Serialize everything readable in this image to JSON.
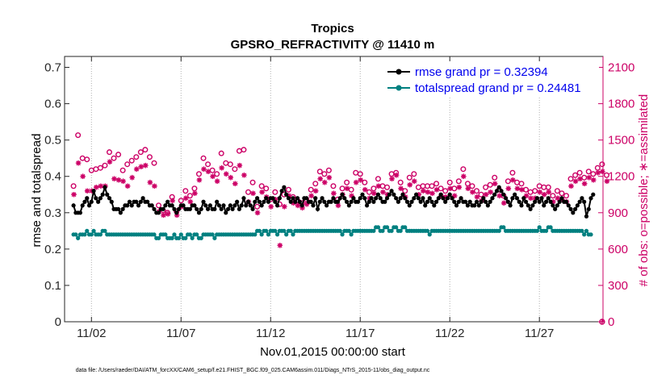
{
  "chart_data": {
    "type": "line",
    "title": "Tropics",
    "subtitle": "GPSRO_REFRACTIVITY @ 11410 m",
    "xlabel": "Nov.01,2015 00:00:00 start",
    "ylabel": "rmse and totalspread",
    "ylabel_right": "# of obs: o=possible; ∗=assimilated",
    "footer": "data file: /Users/raeder/DAI/ATM_forcXX/CAM6_setup/f.e21.FHIST_BGC.f09_025.CAM6assim.011/Diags_NTrS_2015-11/obs_diag_output.nc",
    "x_range": [
      0.5,
      30.55
    ],
    "ylim": [
      0,
      0.73
    ],
    "ylim_right": [
      0,
      2190
    ],
    "xticks": [
      {
        "value": 2,
        "label": "11/02"
      },
      {
        "value": 7,
        "label": "11/07"
      },
      {
        "value": 12,
        "label": "11/12"
      },
      {
        "value": 17,
        "label": "11/17"
      },
      {
        "value": 22,
        "label": "11/22"
      },
      {
        "value": 27,
        "label": "11/27"
      }
    ],
    "yticks": [
      {
        "value": 0,
        "label": "0"
      },
      {
        "value": 0.1,
        "label": "0.1"
      },
      {
        "value": 0.2,
        "label": "0.2"
      },
      {
        "value": 0.3,
        "label": "0.3"
      },
      {
        "value": 0.4,
        "label": "0.4"
      },
      {
        "value": 0.5,
        "label": "0.5"
      },
      {
        "value": 0.6,
        "label": "0.6"
      },
      {
        "value": 0.7,
        "label": "0.7"
      }
    ],
    "yticks_right": [
      {
        "value": 0,
        "label": "0"
      },
      {
        "value": 300,
        "label": "300"
      },
      {
        "value": 600,
        "label": "600"
      },
      {
        "value": 900,
        "label": "900"
      },
      {
        "value": 1200,
        "label": "1200"
      },
      {
        "value": 1500,
        "label": "1500"
      },
      {
        "value": 1800,
        "label": "1800"
      },
      {
        "value": 2100,
        "label": "2100"
      }
    ],
    "series": [
      {
        "name": "rmse grand pr = 0.32394",
        "color": "#000000",
        "x_start": 1,
        "x_step": 0.125,
        "values": [
          0.32,
          0.3,
          0.3,
          0.3,
          0.32,
          0.33,
          0.34,
          0.32,
          0.33,
          0.36,
          0.34,
          0.33,
          0.34,
          0.35,
          0.37,
          0.35,
          0.34,
          0.33,
          0.31,
          0.31,
          0.31,
          0.3,
          0.31,
          0.32,
          0.32,
          0.33,
          0.32,
          0.33,
          0.33,
          0.32,
          0.33,
          0.34,
          0.33,
          0.33,
          0.32,
          0.32,
          0.31,
          0.3,
          0.3,
          0.31,
          0.31,
          0.32,
          0.33,
          0.32,
          0.32,
          0.31,
          0.3,
          0.31,
          0.32,
          0.32,
          0.31,
          0.31,
          0.31,
          0.32,
          0.32,
          0.31,
          0.3,
          0.31,
          0.33,
          0.32,
          0.31,
          0.32,
          0.31,
          0.31,
          0.33,
          0.32,
          0.31,
          0.32,
          0.3,
          0.31,
          0.32,
          0.31,
          0.32,
          0.33,
          0.31,
          0.32,
          0.34,
          0.32,
          0.33,
          0.32,
          0.31,
          0.33,
          0.34,
          0.33,
          0.32,
          0.33,
          0.34,
          0.33,
          0.34,
          0.34,
          0.33,
          0.32,
          0.34,
          0.36,
          0.37,
          0.35,
          0.34,
          0.33,
          0.34,
          0.33,
          0.34,
          0.33,
          0.32,
          0.34,
          0.34,
          0.33,
          0.33,
          0.32,
          0.34,
          0.31,
          0.33,
          0.34,
          0.33,
          0.32,
          0.33,
          0.33,
          0.34,
          0.33,
          0.33,
          0.34,
          0.35,
          0.34,
          0.33,
          0.32,
          0.33,
          0.34,
          0.33,
          0.33,
          0.34,
          0.35,
          0.34,
          0.32,
          0.33,
          0.34,
          0.33,
          0.34,
          0.35,
          0.34,
          0.33,
          0.33,
          0.34,
          0.35,
          0.36,
          0.35,
          0.34,
          0.33,
          0.34,
          0.35,
          0.34,
          0.33,
          0.32,
          0.33,
          0.34,
          0.35,
          0.34,
          0.33,
          0.34,
          0.32,
          0.33,
          0.34,
          0.33,
          0.32,
          0.33,
          0.34,
          0.35,
          0.34,
          0.33,
          0.34,
          0.35,
          0.34,
          0.33,
          0.32,
          0.33,
          0.34,
          0.33,
          0.33,
          0.32,
          0.33,
          0.32,
          0.32,
          0.33,
          0.32,
          0.33,
          0.34,
          0.33,
          0.32,
          0.33,
          0.34,
          0.35,
          0.36,
          0.37,
          0.36,
          0.35,
          0.34,
          0.33,
          0.32,
          0.34,
          0.35,
          0.34,
          0.33,
          0.32,
          0.34,
          0.33,
          0.32,
          0.31,
          0.32,
          0.33,
          0.34,
          0.33,
          0.34,
          0.32,
          0.33,
          0.34,
          0.33,
          0.32,
          0.31,
          0.32,
          0.33,
          0.34,
          0.33,
          0.33,
          0.32,
          0.31,
          0.3,
          0.31,
          0.32,
          0.33,
          0.34,
          0.33,
          0.29,
          0.31,
          0.34,
          0.35
        ]
      },
      {
        "name": "totalspread grand pr = 0.24481",
        "color": "#008080",
        "x_start": 1,
        "x_step": 0.125,
        "values": [
          0.24,
          0.24,
          0.23,
          0.24,
          0.24,
          0.24,
          0.25,
          0.24,
          0.24,
          0.25,
          0.24,
          0.24,
          0.24,
          0.25,
          0.25,
          0.24,
          0.24,
          0.24,
          0.24,
          0.24,
          0.24,
          0.24,
          0.24,
          0.24,
          0.24,
          0.24,
          0.24,
          0.24,
          0.24,
          0.24,
          0.24,
          0.24,
          0.24,
          0.24,
          0.24,
          0.24,
          0.24,
          0.23,
          0.23,
          0.24,
          0.24,
          0.24,
          0.23,
          0.23,
          0.23,
          0.24,
          0.23,
          0.23,
          0.24,
          0.23,
          0.23,
          0.24,
          0.24,
          0.23,
          0.24,
          0.24,
          0.23,
          0.23,
          0.24,
          0.24,
          0.24,
          0.24,
          0.24,
          0.23,
          0.24,
          0.24,
          0.24,
          0.24,
          0.24,
          0.24,
          0.24,
          0.24,
          0.24,
          0.24,
          0.24,
          0.24,
          0.24,
          0.24,
          0.24,
          0.24,
          0.24,
          0.24,
          0.25,
          0.25,
          0.24,
          0.25,
          0.25,
          0.24,
          0.25,
          0.25,
          0.25,
          0.24,
          0.25,
          0.25,
          0.25,
          0.24,
          0.25,
          0.25,
          0.24,
          0.25,
          0.25,
          0.25,
          0.25,
          0.25,
          0.25,
          0.25,
          0.25,
          0.25,
          0.25,
          0.25,
          0.25,
          0.25,
          0.25,
          0.25,
          0.25,
          0.25,
          0.25,
          0.25,
          0.25,
          0.25,
          0.24,
          0.25,
          0.25,
          0.25,
          0.24,
          0.25,
          0.25,
          0.25,
          0.25,
          0.25,
          0.25,
          0.25,
          0.25,
          0.25,
          0.25,
          0.26,
          0.26,
          0.25,
          0.25,
          0.26,
          0.26,
          0.25,
          0.25,
          0.26,
          0.26,
          0.25,
          0.25,
          0.26,
          0.26,
          0.25,
          0.25,
          0.25,
          0.25,
          0.25,
          0.25,
          0.25,
          0.25,
          0.25,
          0.25,
          0.24,
          0.25,
          0.25,
          0.25,
          0.25,
          0.25,
          0.25,
          0.25,
          0.25,
          0.25,
          0.25,
          0.25,
          0.25,
          0.25,
          0.25,
          0.25,
          0.25,
          0.25,
          0.25,
          0.25,
          0.25,
          0.25,
          0.25,
          0.25,
          0.25,
          0.25,
          0.25,
          0.25,
          0.25,
          0.25,
          0.25,
          0.25,
          0.26,
          0.26,
          0.25,
          0.25,
          0.25,
          0.25,
          0.25,
          0.25,
          0.25,
          0.25,
          0.25,
          0.25,
          0.25,
          0.25,
          0.25,
          0.25,
          0.25,
          0.26,
          0.25,
          0.25,
          0.25,
          0.26,
          0.26,
          0.25,
          0.25,
          0.25,
          0.25,
          0.25,
          0.25,
          0.25,
          0.25,
          0.25,
          0.25,
          0.25,
          0.25,
          0.25,
          0.25,
          0.24,
          0.25,
          0.24,
          0.24
        ]
      }
    ],
    "obs_possible": {
      "name": "possible",
      "color": "#cc0066",
      "marker": "o",
      "x_start": 1,
      "x_step": 0.25,
      "values": [
        1120,
        1540,
        1350,
        1340,
        1250,
        1260,
        1270,
        1290,
        1400,
        1350,
        1380,
        1250,
        1300,
        1330,
        1360,
        1400,
        1420,
        1360,
        1310,
        960,
        920,
        900,
        1030,
        910,
        1000,
        1080,
        1040,
        1100,
        1220,
        1350,
        1300,
        1250,
        1220,
        1390,
        1310,
        1300,
        1260,
        1410,
        1420,
        1070,
        1150,
        950,
        1120,
        1100,
        1010,
        1070,
        970,
        1050,
        1090,
        1030,
        1000,
        980,
        1010,
        1090,
        1140,
        1240,
        1220,
        1250,
        1120,
        1010,
        1100,
        1150,
        1090,
        1230,
        1220,
        1150,
        1070,
        1100,
        1180,
        1120,
        1110,
        1220,
        1230,
        1150,
        1080,
        1190,
        1220,
        1110,
        1120,
        1120,
        1120,
        1140,
        1100,
        1080,
        1150,
        1100,
        1160,
        1260,
        1140,
        1120,
        1080,
        1050,
        1110,
        1130,
        1190,
        1090,
        1040,
        1160,
        1230,
        1150,
        1140,
        1090,
        1070,
        1080,
        1120,
        1110,
        1110,
        1040,
        1080,
        1060,
        1040,
        1180,
        1210,
        1230,
        1190,
        1240,
        1220,
        1270,
        1300,
        1210
      ]
    },
    "obs_assimilated": {
      "name": "assimilated",
      "color": "#cc0066",
      "marker": "*",
      "x_start": 1,
      "x_step": 0.25,
      "values": [
        1050,
        1310,
        1200,
        1080,
        1080,
        1110,
        1120,
        1120,
        1320,
        1180,
        1170,
        1160,
        1120,
        1190,
        1260,
        1280,
        1290,
        1150,
        1120,
        910,
        880,
        890,
        1000,
        880,
        950,
        1020,
        990,
        1060,
        1170,
        1260,
        1240,
        1200,
        1160,
        1270,
        1220,
        1190,
        1140,
        1290,
        1210,
        990,
        1060,
        900,
        1070,
        1030,
        950,
        1010,
        630,
        950,
        1040,
        980,
        960,
        940,
        970,
        1040,
        1080,
        1180,
        1150,
        1190,
        1060,
        960,
        1050,
        1100,
        1040,
        1150,
        1170,
        1090,
        1020,
        1060,
        1120,
        1070,
        1050,
        1180,
        1210,
        1100,
        1030,
        1130,
        1160,
        1050,
        1080,
        1070,
        1060,
        1090,
        1040,
        1030,
        1100,
        1040,
        1110,
        1200,
        1100,
        1070,
        1030,
        1000,
        1050,
        1070,
        1140,
        1040,
        980,
        1100,
        1170,
        1100,
        1090,
        1040,
        1020,
        1020,
        1070,
        1050,
        1070,
        990,
        1020,
        1010,
        990,
        1120,
        1160,
        1180,
        1140,
        1190,
        1170,
        1230,
        1240,
        1160
      ]
    }
  }
}
